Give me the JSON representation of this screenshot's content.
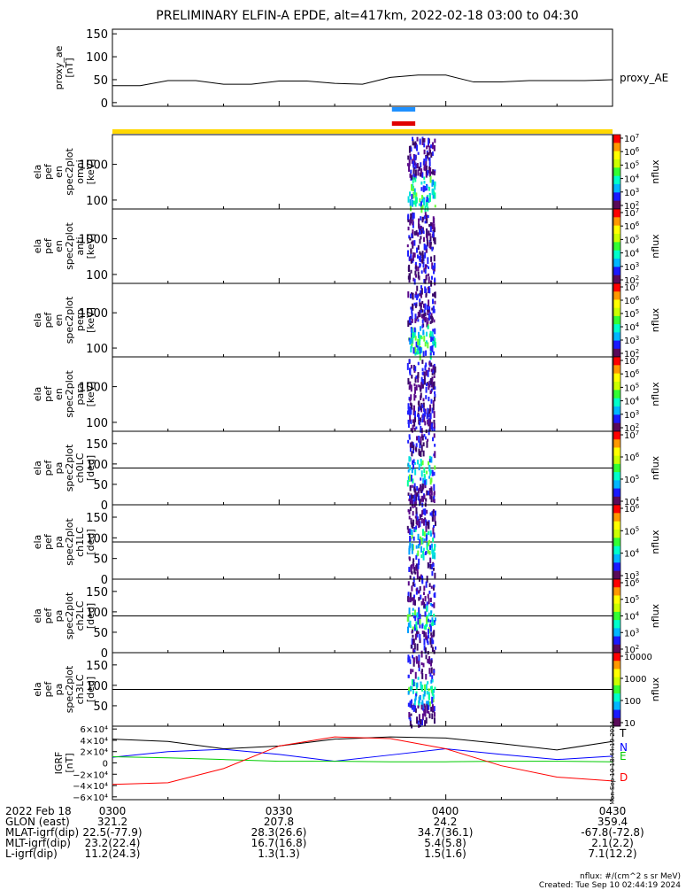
{
  "title": "PRELIMINARY ELFIN-A EPDE, alt=417km, 2022-02-18 03:00 to 04:30",
  "colors": {
    "ae_line": "#000000",
    "bar_yellow": "#ffd700",
    "bar_blue": "#1e90ff",
    "bar_red": "#e00000",
    "grf_T": "#000000",
    "grf_N": "#0000ff",
    "grf_E": "#00cc00",
    "grf_D": "#ff0000"
  },
  "colorbar_stops": [
    "#5a0a5a",
    "#1a1aff",
    "#00b7ff",
    "#00ffcc",
    "#33ff33",
    "#ccff00",
    "#ffff00",
    "#ff9900",
    "#ff0000"
  ],
  "chart_data": [
    {
      "type": "line",
      "name": "proxy_ae",
      "ylabel": "proxy_ae\n[nT]",
      "ylabel_lines": [
        "proxy_ae",
        "[nT]"
      ],
      "series_label": "proxy_AE",
      "ylim": [
        -8,
        160
      ],
      "yticks": [
        "0",
        "50",
        "100",
        "150"
      ],
      "x_minutes": [
        0,
        5,
        10,
        15,
        20,
        25,
        30,
        35,
        40,
        45,
        50,
        55,
        60,
        65,
        70,
        75,
        80,
        85,
        90
      ],
      "values": [
        37,
        37,
        48,
        48,
        40,
        40,
        47,
        47,
        42,
        40,
        55,
        60,
        60,
        45,
        45,
        48,
        48,
        48,
        50
      ]
    },
    {
      "type": "heatmap",
      "ylabel_lines": [
        "ela",
        "pef",
        "en",
        "spec2plot",
        "omni",
        "[keV]"
      ],
      "yscale": "log",
      "yticks": [
        "100",
        "1000"
      ],
      "zlabel": "nflux",
      "zticks": [
        "10^2",
        "10^3",
        "10^4",
        "10^5",
        "10^6",
        "10^7"
      ],
      "active_window_minutes": [
        53,
        58
      ]
    },
    {
      "type": "heatmap",
      "ylabel_lines": [
        "ela",
        "pef",
        "en",
        "spec2plot",
        "anti",
        "[keV]"
      ],
      "yscale": "log",
      "yticks": [
        "100",
        "1000"
      ],
      "zlabel": "nflux",
      "zticks": [
        "10^2",
        "10^3",
        "10^4",
        "10^5",
        "10^6",
        "10^7"
      ],
      "active_window_minutes": [
        53,
        58
      ]
    },
    {
      "type": "heatmap",
      "ylabel_lines": [
        "ela",
        "pef",
        "en",
        "spec2plot",
        "perp",
        "[keV]"
      ],
      "yscale": "log",
      "yticks": [
        "100",
        "1000"
      ],
      "zlabel": "nflux",
      "zticks": [
        "10^2",
        "10^3",
        "10^4",
        "10^5",
        "10^6",
        "10^7"
      ],
      "active_window_minutes": [
        53,
        58
      ]
    },
    {
      "type": "heatmap",
      "ylabel_lines": [
        "ela",
        "pef",
        "en",
        "spec2plot",
        "para",
        "[keV]"
      ],
      "yscale": "log",
      "yticks": [
        "100",
        "1000"
      ],
      "zlabel": "nflux",
      "zticks": [
        "10^2",
        "10^3",
        "10^4",
        "10^5",
        "10^6",
        "10^7"
      ],
      "active_window_minutes": [
        53,
        58
      ]
    },
    {
      "type": "heatmap",
      "ylabel_lines": [
        "ela",
        "pef",
        "pa",
        "spec2plot",
        "ch0LC",
        "[deg]"
      ],
      "ylim": [
        0,
        180
      ],
      "yticks": [
        "0",
        "50",
        "100",
        "150"
      ],
      "zlabel": "nflux",
      "zticks": [
        "10^4",
        "10^5",
        "10^6",
        "10^7"
      ],
      "active_window_minutes": [
        53,
        58
      ]
    },
    {
      "type": "heatmap",
      "ylabel_lines": [
        "ela",
        "pef",
        "pa",
        "spec2plot",
        "ch1LC",
        "[deg]"
      ],
      "ylim": [
        0,
        180
      ],
      "yticks": [
        "0",
        "50",
        "100",
        "150"
      ],
      "zlabel": "nflux",
      "zticks": [
        "10^3",
        "10^4",
        "10^5",
        "10^6"
      ],
      "active_window_minutes": [
        53,
        58
      ]
    },
    {
      "type": "heatmap",
      "ylabel_lines": [
        "ela",
        "pef",
        "pa",
        "spec2plot",
        "ch2LC",
        "[deg]"
      ],
      "ylim": [
        0,
        180
      ],
      "yticks": [
        "0",
        "50",
        "100",
        "150"
      ],
      "zlabel": "nflux",
      "zticks": [
        "10^2",
        "10^3",
        "10^4",
        "10^5",
        "10^6"
      ],
      "active_window_minutes": [
        53,
        58
      ]
    },
    {
      "type": "heatmap",
      "ylabel_lines": [
        "ela",
        "pef",
        "pa",
        "spec2plot",
        "ch3LC",
        "[deg]"
      ],
      "ylim": [
        0,
        180
      ],
      "yticks": [
        "50",
        "100",
        "150"
      ],
      "zlabel": "nflux",
      "zticks": [
        "10",
        "100",
        "1000",
        "10000"
      ],
      "active_window_minutes": [
        53,
        58
      ]
    },
    {
      "type": "line",
      "name": "IGRF",
      "ylabel_lines": [
        "IGRF",
        "[nT]"
      ],
      "ylim": [
        -65000,
        65000
      ],
      "yticks": [
        "6×10⁴",
        "4×10⁴",
        "2×10⁴",
        "0",
        "−2×10⁴",
        "−4×10⁴",
        "−6×10⁴"
      ],
      "x_minutes": [
        0,
        10,
        20,
        30,
        40,
        50,
        60,
        70,
        80,
        90
      ],
      "series": [
        {
          "name": "T",
          "values": [
            42000,
            38000,
            25000,
            30000,
            42000,
            46000,
            44000,
            34000,
            23000,
            38000
          ]
        },
        {
          "name": "N",
          "values": [
            10000,
            20000,
            24000,
            15000,
            3000,
            14000,
            25000,
            15000,
            6000,
            12000
          ]
        },
        {
          "name": "E",
          "values": [
            11000,
            9000,
            6000,
            3000,
            3000,
            2000,
            2000,
            3000,
            3000,
            2000
          ]
        },
        {
          "name": "D",
          "values": [
            -38000,
            -35000,
            -10000,
            30000,
            46000,
            43000,
            25000,
            -5000,
            -25000,
            -32000
          ]
        }
      ],
      "side_text": "Mon Sep 10 18:44:19 2024"
    }
  ],
  "footer": {
    "rows": [
      {
        "label": "2022 Feb 18",
        "values": [
          "0300",
          "0330",
          "0400",
          "0430"
        ]
      },
      {
        "label": "GLON (east)",
        "values": [
          "321.2",
          "207.8",
          "24.2",
          "359.4"
        ]
      },
      {
        "label": "MLAT-igrf(dip)",
        "values": [
          "22.5(-77.9)",
          "28.3(26.6)",
          "34.7(36.1)",
          "-67.8(-72.8)"
        ]
      },
      {
        "label": "MLT-igrf(dip)",
        "values": [
          "23.2(22.4)",
          "16.7(16.8)",
          "5.4(5.8)",
          "2.1(2.2)"
        ]
      },
      {
        "label": "L-igrf(dip)",
        "values": [
          "11.2(24.3)",
          "1.3(1.3)",
          "1.5(1.6)",
          "7.1(12.2)"
        ]
      }
    ],
    "units_note": "nflux: #/(cm^2 s sr MeV)",
    "created_note": "Created: Tue Sep 10 02:44:19 2024"
  }
}
